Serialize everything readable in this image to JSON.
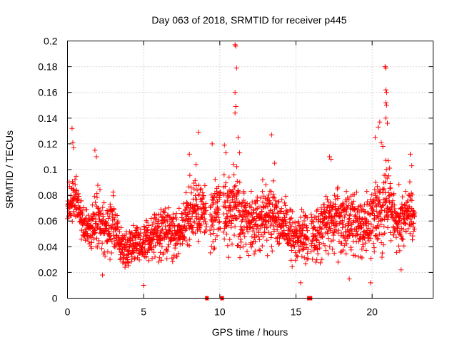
{
  "chart_data": {
    "type": "scatter",
    "title": "Day 063 of 2018, SRMTID for receiver p445",
    "xlabel": "GPS time / hours",
    "ylabel": "SRMTID / TECUs",
    "xlim": [
      0,
      24
    ],
    "ylim": [
      0,
      0.2
    ],
    "xticks": [
      0,
      5,
      10,
      15,
      20
    ],
    "xtick_labels": [
      "0",
      "5",
      "10",
      "15",
      "20"
    ],
    "yticks": [
      0,
      0.02,
      0.04,
      0.06,
      0.08,
      0.1,
      0.12,
      0.14,
      0.16,
      0.18,
      0.2
    ],
    "ytick_labels": [
      "0",
      "0.02",
      "0.04",
      "0.06",
      "0.08",
      "0.1",
      "0.12",
      "0.14",
      "0.16",
      "0.18",
      "0.2"
    ],
    "grid": true,
    "marker": "plus",
    "marker_color": "#ff0000",
    "series": [
      {
        "name": "SRMTID",
        "envelope": {
          "x": [
            0,
            0.5,
            1,
            1.5,
            2,
            2.5,
            3,
            3.5,
            4,
            4.5,
            5,
            5.5,
            6,
            6.5,
            7,
            7.5,
            8,
            8.5,
            9,
            9.5,
            10,
            10.5,
            11,
            11.5,
            12,
            12.5,
            13,
            13.5,
            14,
            14.5,
            15,
            15.5,
            16,
            16.5,
            17,
            17.5,
            18,
            18.5,
            19,
            19.5,
            20,
            20.5,
            21,
            21.5,
            22,
            22.5,
            22.8
          ],
          "low": [
            0.055,
            0.05,
            0.03,
            0.035,
            0.03,
            0.028,
            0.025,
            0.02,
            0.018,
            0.018,
            0.022,
            0.02,
            0.025,
            0.025,
            0.025,
            0.025,
            0.03,
            0.03,
            0.03,
            0.03,
            0.03,
            0.028,
            0.025,
            0.025,
            0.025,
            0.028,
            0.03,
            0.03,
            0.03,
            0.025,
            0.02,
            0.02,
            0.022,
            0.022,
            0.025,
            0.025,
            0.025,
            0.025,
            0.025,
            0.025,
            0.025,
            0.03,
            0.03,
            0.03,
            0.03,
            0.035,
            0.04
          ],
          "high": [
            0.09,
            0.11,
            0.08,
            0.07,
            0.1,
            0.08,
            0.09,
            0.06,
            0.06,
            0.065,
            0.065,
            0.07,
            0.08,
            0.08,
            0.075,
            0.075,
            0.1,
            0.11,
            0.1,
            0.1,
            0.11,
            0.1,
            0.12,
            0.095,
            0.09,
            0.095,
            0.1,
            0.1,
            0.09,
            0.08,
            0.075,
            0.075,
            0.08,
            0.08,
            0.09,
            0.1,
            0.09,
            0.09,
            0.09,
            0.09,
            0.1,
            0.11,
            0.12,
            0.09,
            0.09,
            0.1,
            0.07
          ]
        },
        "points": [
          {
            "x": 0.3,
            "y": 0.132
          },
          {
            "x": 0.35,
            "y": 0.121
          },
          {
            "x": 0.4,
            "y": 0.117
          },
          {
            "x": 1.8,
            "y": 0.115
          },
          {
            "x": 1.9,
            "y": 0.11
          },
          {
            "x": 8.0,
            "y": 0.112
          },
          {
            "x": 8.6,
            "y": 0.129
          },
          {
            "x": 9.5,
            "y": 0.12
          },
          {
            "x": 10.3,
            "y": 0.119
          },
          {
            "x": 10.4,
            "y": 0.113
          },
          {
            "x": 11.0,
            "y": 0.197
          },
          {
            "x": 11.05,
            "y": 0.196
          },
          {
            "x": 11.1,
            "y": 0.179
          },
          {
            "x": 11.0,
            "y": 0.16
          },
          {
            "x": 11.05,
            "y": 0.149
          },
          {
            "x": 11.0,
            "y": 0.144
          },
          {
            "x": 11.2,
            "y": 0.125
          },
          {
            "x": 11.3,
            "y": 0.113
          },
          {
            "x": 13.4,
            "y": 0.127
          },
          {
            "x": 13.6,
            "y": 0.105
          },
          {
            "x": 17.2,
            "y": 0.11
          },
          {
            "x": 17.3,
            "y": 0.108
          },
          {
            "x": 20.2,
            "y": 0.125
          },
          {
            "x": 20.4,
            "y": 0.133
          },
          {
            "x": 20.5,
            "y": 0.137
          },
          {
            "x": 20.6,
            "y": 0.121
          },
          {
            "x": 20.7,
            "y": 0.118
          },
          {
            "x": 20.85,
            "y": 0.18
          },
          {
            "x": 20.9,
            "y": 0.179
          },
          {
            "x": 20.9,
            "y": 0.162
          },
          {
            "x": 20.95,
            "y": 0.16
          },
          {
            "x": 20.9,
            "y": 0.152
          },
          {
            "x": 20.95,
            "y": 0.15
          },
          {
            "x": 20.9,
            "y": 0.14
          },
          {
            "x": 21.0,
            "y": 0.136
          },
          {
            "x": 22.5,
            "y": 0.112
          },
          {
            "x": 22.6,
            "y": 0.103
          },
          {
            "x": 19.9,
            "y": 0.012
          },
          {
            "x": 18.5,
            "y": 0.015
          },
          {
            "x": 5.0,
            "y": 0.01
          },
          {
            "x": 2.3,
            "y": 0.018
          },
          {
            "x": 21.9,
            "y": 0.022
          },
          {
            "x": 15.3,
            "y": 0.012
          }
        ]
      }
    ],
    "gap_marks": [
      {
        "x": 9.15,
        "y": 0
      },
      {
        "x": 10.15,
        "y": 0
      },
      {
        "x": 15.85,
        "y": 0
      },
      {
        "x": 15.95,
        "y": 0
      }
    ]
  }
}
